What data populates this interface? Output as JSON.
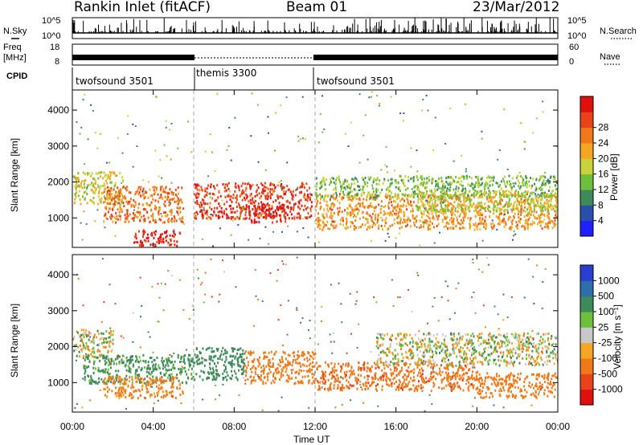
{
  "header": {
    "title": "Rankin Inlet (fitACF)",
    "beam": "Beam 01",
    "date": "23/Mar/2012"
  },
  "noise_panel": {
    "left_label": "N.Sky",
    "left_ticks": [
      "10^5",
      "10^0"
    ],
    "right_ticks": [
      "10^5",
      "10^0"
    ],
    "right_label": "N.Search"
  },
  "freq_panel": {
    "left_label_1": "Freq",
    "left_label_2": "[MHz]",
    "left_ticks": [
      "18",
      "8"
    ],
    "right_ticks": [
      "60",
      "0"
    ],
    "right_label": "Nave"
  },
  "cpid_panel": {
    "label": "CPID",
    "segments": [
      "twofsound 3501",
      "themis 3300",
      "twofsound 3501"
    ]
  },
  "colors": {
    "power_scale": [
      "#1f1fff",
      "#2a4fa8",
      "#3f8a5a",
      "#6fbf3f",
      "#c8d23a",
      "#f5a623",
      "#f07a1a",
      "#e8431a",
      "#e0100e"
    ],
    "velocity_scale": [
      "#2a3fd0",
      "#2f6ea8",
      "#3f8a5a",
      "#6fbf3f",
      "#c8c8c8",
      "#f5a623",
      "#f07a1a",
      "#e8431a",
      "#e0100e"
    ]
  },
  "chart_data": [
    {
      "type": "heatmap",
      "name": "power",
      "xlabel": "",
      "ylabel": "Slant Range [km]",
      "x_ticks": [
        "00:00",
        "04:00",
        "08:00",
        "12:00",
        "16:00",
        "20:00",
        "00:00"
      ],
      "y_ticks": [
        1000,
        2000,
        3000,
        4000
      ],
      "ylim": [
        180,
        4560
      ],
      "colorbar_label": "Power [dB]",
      "colorbar_ticks": [
        4,
        8,
        12,
        16,
        20,
        24,
        28
      ],
      "clim": [
        0,
        30
      ],
      "bands": [
        {
          "t0": 0.0,
          "t1": 2.5,
          "r0": 1400,
          "r1": 2300,
          "value": 16
        },
        {
          "t0": 1.5,
          "t1": 5.5,
          "r0": 900,
          "r1": 1900,
          "value": 22
        },
        {
          "t0": 3.0,
          "t1": 5.3,
          "r0": 250,
          "r1": 700,
          "value": 28
        },
        {
          "t0": 6.0,
          "t1": 11.8,
          "r0": 1000,
          "r1": 2000,
          "value": 26
        },
        {
          "t0": 8.5,
          "t1": 10.5,
          "r0": 900,
          "r1": 1400,
          "value": 28
        },
        {
          "t0": 12.0,
          "t1": 24.0,
          "r0": 700,
          "r1": 1700,
          "value": 20
        },
        {
          "t0": 12.0,
          "t1": 24.0,
          "r0": 1600,
          "r1": 2200,
          "value": 12
        },
        {
          "t0": 17.0,
          "t1": 24.0,
          "r0": 1200,
          "r1": 1800,
          "value": 14
        }
      ]
    },
    {
      "type": "heatmap",
      "name": "velocity",
      "xlabel": "Time UT",
      "ylabel": "Slant Range [km]",
      "x_ticks": [
        "00:00",
        "04:00",
        "08:00",
        "12:00",
        "16:00",
        "20:00",
        "00:00"
      ],
      "y_ticks": [
        1000,
        2000,
        3000,
        4000
      ],
      "ylim": [
        180,
        4560
      ],
      "colorbar_label": "Velocity [m s⁻¹]",
      "colorbar_ticks": [
        1000,
        500,
        100,
        25,
        -25,
        -100,
        -500,
        -1000
      ],
      "bands": [
        {
          "t0": 0.0,
          "t1": 2.0,
          "r0": 1700,
          "r1": 2500,
          "value": 0
        },
        {
          "t0": 0.5,
          "t1": 6.0,
          "r0": 1000,
          "r1": 1800,
          "value": 200
        },
        {
          "t0": 1.5,
          "t1": 5.5,
          "r0": 600,
          "r1": 1200,
          "value": -200
        },
        {
          "t0": 6.0,
          "t1": 8.5,
          "r0": 1100,
          "r1": 2000,
          "value": 300
        },
        {
          "t0": 8.5,
          "t1": 12.0,
          "r0": 1000,
          "r1": 1900,
          "value": -300
        },
        {
          "t0": 12.0,
          "t1": 20.0,
          "r0": 800,
          "r1": 1600,
          "value": -400
        },
        {
          "t0": 15.0,
          "t1": 24.0,
          "r0": 1500,
          "r1": 2400,
          "value": 0
        },
        {
          "t0": 20.0,
          "t1": 24.0,
          "r0": 600,
          "r1": 1300,
          "value": -300
        }
      ]
    }
  ]
}
